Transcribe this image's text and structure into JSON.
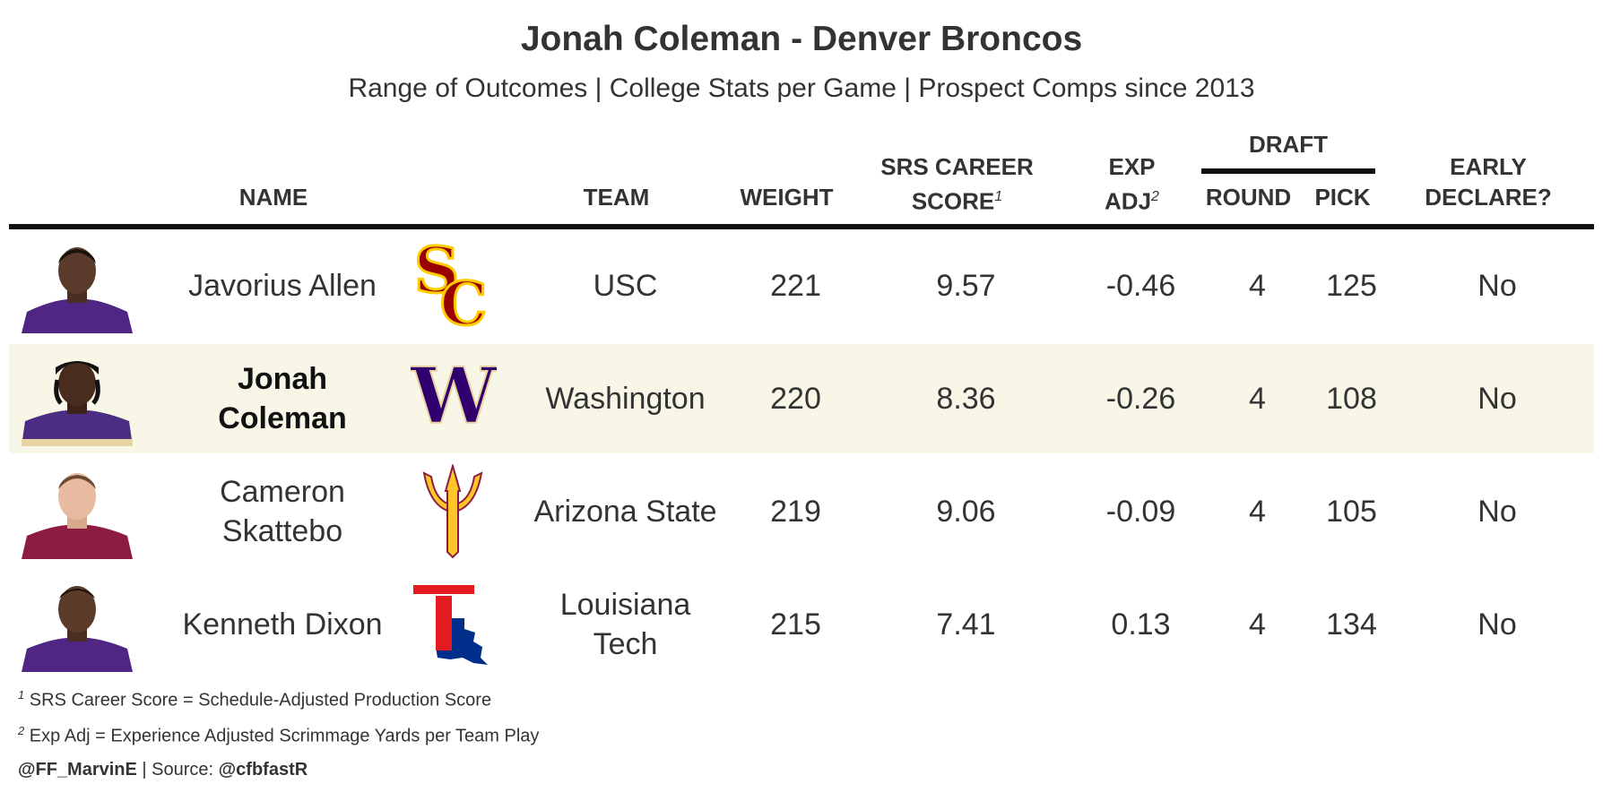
{
  "title": "Jonah Coleman - Denver Broncos",
  "subtitle": "Range of Outcomes | College Stats per Game | Prospect Comps since 2013",
  "headers": {
    "name": "NAME",
    "team": "TEAM",
    "weight": "WEIGHT",
    "srs_line1": "SRS CAREER",
    "srs_line2": "SCORE",
    "srs_note": "1",
    "exp_line1": "EXP",
    "exp_line2": "ADJ",
    "exp_note": "2",
    "draft": "DRAFT",
    "round": "ROUND",
    "pick": "PICK",
    "early_line1": "EARLY",
    "early_line2": "DECLARE?"
  },
  "rows": [
    {
      "name": "Javorius Allen",
      "team": "USC",
      "weight": "221",
      "srs": "9.57",
      "exp_adj": "-0.46",
      "round": "4",
      "pick": "125",
      "early_declare": "No",
      "logo_icon": "usc-logo-icon",
      "jersey_color": "#4f2683"
    },
    {
      "name": "Jonah Coleman",
      "team": "Washington",
      "weight": "220",
      "srs": "8.36",
      "exp_adj": "-0.26",
      "round": "4",
      "pick": "108",
      "early_declare": "No",
      "logo_icon": "washington-logo-icon",
      "jersey_color": "#4b2e83",
      "highlight": true
    },
    {
      "name": "Cameron Skattebo",
      "team": "Arizona State",
      "weight": "219",
      "srs": "9.06",
      "exp_adj": "-0.09",
      "round": "4",
      "pick": "105",
      "early_declare": "No",
      "logo_icon": "arizona-state-logo-icon",
      "jersey_color": "#8c1d40"
    },
    {
      "name": "Kenneth Dixon",
      "team": "Louisiana Tech",
      "weight": "215",
      "srs": "7.41",
      "exp_adj": "0.13",
      "round": "4",
      "pick": "134",
      "early_declare": "No",
      "logo_icon": "louisiana-tech-logo-icon",
      "jersey_color": "#4f2683"
    }
  ],
  "footnotes": {
    "note1_marker": "1",
    "note1": "SRS Career Score = Schedule-Adjusted Production Score",
    "note2_marker": "2",
    "note2": "Exp Adj = Experience Adjusted Scrimmage Yards per Team Play",
    "credit_handle": "@FF_MarvinE",
    "credit_sep": " | Source: ",
    "credit_source": "@cfbfastR"
  },
  "colors": {
    "highlight_row": "#f8f6e6",
    "usc_cardinal": "#990000",
    "usc_gold": "#ffcc00",
    "washington_purple": "#32006e",
    "washington_gold": "#e8d3a2",
    "asu_gold": "#ffc627",
    "asu_maroon": "#8c1d40",
    "latech_red": "#e31b23",
    "latech_blue": "#002f8b"
  }
}
